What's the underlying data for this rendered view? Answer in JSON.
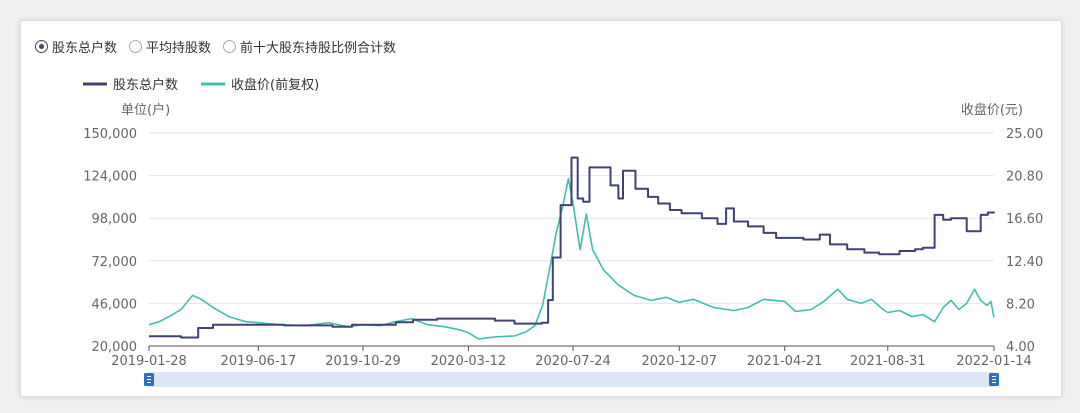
{
  "options": [
    {
      "label": "股东总户数",
      "selected": true
    },
    {
      "label": "平均持股数",
      "selected": false
    },
    {
      "label": "前十大股东持股比例合计数",
      "selected": false
    }
  ],
  "chart_data": {
    "type": "line",
    "title": "",
    "legend_position": "top-left",
    "grid": true,
    "left_axis": {
      "title": "单位(户)",
      "range": [
        20000,
        150000
      ],
      "ticks": [
        "150,000",
        "124,000",
        "98,000",
        "72,000",
        "46,000",
        "20,000"
      ]
    },
    "right_axis": {
      "title": "收盘价(元)",
      "range": [
        4.0,
        25.0
      ],
      "ticks": [
        "25.00",
        "20.80",
        "16.60",
        "12.40",
        "8.20",
        "4.00"
      ]
    },
    "x_axis": {
      "range": [
        "2019-01-28",
        "2022-01-14"
      ],
      "ticks": [
        "2019-01-28",
        "2019-06-17",
        "2019-10-29",
        "2020-03-12",
        "2020-07-24",
        "2020-12-07",
        "2021-04-21",
        "2021-08-31",
        "2022-01-14"
      ]
    },
    "series": [
      {
        "name": "股东总户数",
        "color": "#3e4374",
        "axis": "left",
        "step": true,
        "points": [
          [
            "2019-01-28",
            26000
          ],
          [
            "2019-03-10",
            25200
          ],
          [
            "2019-04-01",
            31000
          ],
          [
            "2019-04-20",
            33000
          ],
          [
            "2019-06-10",
            33000
          ],
          [
            "2019-07-20",
            32600
          ],
          [
            "2019-09-20",
            31800
          ],
          [
            "2019-10-15",
            33000
          ],
          [
            "2019-12-10",
            34500
          ],
          [
            "2020-01-01",
            36000
          ],
          [
            "2020-02-01",
            36700
          ],
          [
            "2020-04-15",
            35500
          ],
          [
            "2020-05-10",
            33700
          ],
          [
            "2020-06-14",
            34200
          ],
          [
            "2020-06-22",
            48000
          ],
          [
            "2020-06-28",
            74000
          ],
          [
            "2020-07-08",
            106000
          ],
          [
            "2020-07-22",
            135000
          ],
          [
            "2020-07-30",
            110000
          ],
          [
            "2020-08-06",
            108000
          ],
          [
            "2020-08-14",
            129000
          ],
          [
            "2020-09-10",
            118000
          ],
          [
            "2020-09-20",
            110000
          ],
          [
            "2020-09-26",
            127000
          ],
          [
            "2020-10-12",
            116000
          ],
          [
            "2020-10-28",
            111000
          ],
          [
            "2020-11-10",
            107000
          ],
          [
            "2020-11-25",
            103000
          ],
          [
            "2020-12-10",
            101000
          ],
          [
            "2021-01-05",
            98000
          ],
          [
            "2021-01-25",
            94500
          ],
          [
            "2021-02-05",
            104000
          ],
          [
            "2021-02-15",
            96000
          ],
          [
            "2021-03-05",
            93000
          ],
          [
            "2021-03-25",
            89000
          ],
          [
            "2021-04-10",
            86000
          ],
          [
            "2021-05-15",
            85000
          ],
          [
            "2021-06-05",
            88000
          ],
          [
            "2021-06-18",
            82000
          ],
          [
            "2021-07-10",
            79000
          ],
          [
            "2021-08-01",
            77000
          ],
          [
            "2021-08-20",
            76000
          ],
          [
            "2021-09-15",
            78000
          ],
          [
            "2021-10-05",
            79000
          ],
          [
            "2021-10-15",
            80000
          ],
          [
            "2021-10-30",
            100000
          ],
          [
            "2021-11-10",
            97000
          ],
          [
            "2021-11-20",
            98000
          ],
          [
            "2021-12-10",
            90000
          ],
          [
            "2021-12-28",
            100000
          ],
          [
            "2022-01-06",
            101500
          ],
          [
            "2022-01-14",
            101000
          ]
        ]
      },
      {
        "name": "收盘价(前复权)",
        "color": "#40bfb0",
        "axis": "right",
        "step": false,
        "points": [
          [
            "2019-01-28",
            6.1
          ],
          [
            "2019-02-10",
            6.4
          ],
          [
            "2019-02-25",
            7.0
          ],
          [
            "2019-03-10",
            7.6
          ],
          [
            "2019-03-25",
            9.0
          ],
          [
            "2019-04-05",
            8.6
          ],
          [
            "2019-04-20",
            7.8
          ],
          [
            "2019-05-10",
            6.9
          ],
          [
            "2019-06-01",
            6.4
          ],
          [
            "2019-06-17",
            6.3
          ],
          [
            "2019-07-15",
            6.1
          ],
          [
            "2019-08-15",
            6.0
          ],
          [
            "2019-09-15",
            6.3
          ],
          [
            "2019-10-10",
            5.9
          ],
          [
            "2019-10-29",
            6.1
          ],
          [
            "2019-11-20",
            6.0
          ],
          [
            "2019-12-10",
            6.4
          ],
          [
            "2019-12-30",
            6.7
          ],
          [
            "2020-01-20",
            6.1
          ],
          [
            "2020-02-10",
            5.9
          ],
          [
            "2020-03-01",
            5.6
          ],
          [
            "2020-03-12",
            5.3
          ],
          [
            "2020-03-25",
            4.7
          ],
          [
            "2020-04-15",
            4.9
          ],
          [
            "2020-05-10",
            5.0
          ],
          [
            "2020-05-25",
            5.4
          ],
          [
            "2020-06-05",
            6.0
          ],
          [
            "2020-06-15",
            8.0
          ],
          [
            "2020-06-25",
            12.0
          ],
          [
            "2020-07-02",
            15.0
          ],
          [
            "2020-07-10",
            17.5
          ],
          [
            "2020-07-18",
            20.5
          ],
          [
            "2020-07-24",
            18.0
          ],
          [
            "2020-08-02",
            13.5
          ],
          [
            "2020-08-10",
            17.0
          ],
          [
            "2020-08-18",
            13.5
          ],
          [
            "2020-09-01",
            11.5
          ],
          [
            "2020-09-20",
            10.0
          ],
          [
            "2020-10-10",
            9.0
          ],
          [
            "2020-11-01",
            8.5
          ],
          [
            "2020-11-20",
            8.8
          ],
          [
            "2020-12-07",
            8.3
          ],
          [
            "2020-12-25",
            8.6
          ],
          [
            "2021-01-20",
            7.8
          ],
          [
            "2021-02-15",
            7.5
          ],
          [
            "2021-03-05",
            7.8
          ],
          [
            "2021-03-25",
            8.6
          ],
          [
            "2021-04-21",
            8.4
          ],
          [
            "2021-05-05",
            7.4
          ],
          [
            "2021-05-25",
            7.6
          ],
          [
            "2021-06-10",
            8.4
          ],
          [
            "2021-06-28",
            9.6
          ],
          [
            "2021-07-10",
            8.6
          ],
          [
            "2021-07-28",
            8.2
          ],
          [
            "2021-08-10",
            8.6
          ],
          [
            "2021-08-25",
            7.6
          ],
          [
            "2021-08-31",
            7.3
          ],
          [
            "2021-09-15",
            7.5
          ],
          [
            "2021-10-01",
            6.9
          ],
          [
            "2021-10-15",
            7.1
          ],
          [
            "2021-10-30",
            6.4
          ],
          [
            "2021-11-10",
            7.8
          ],
          [
            "2021-11-20",
            8.5
          ],
          [
            "2021-11-30",
            7.6
          ],
          [
            "2021-12-10",
            8.2
          ],
          [
            "2021-12-20",
            9.6
          ],
          [
            "2021-12-28",
            8.5
          ],
          [
            "2022-01-05",
            8.0
          ],
          [
            "2022-01-10",
            8.4
          ],
          [
            "2022-01-14",
            6.8
          ]
        ]
      }
    ]
  },
  "icons": {
    "slider_handle_left": "range-handle-icon",
    "slider_handle_right": "range-handle-icon"
  }
}
